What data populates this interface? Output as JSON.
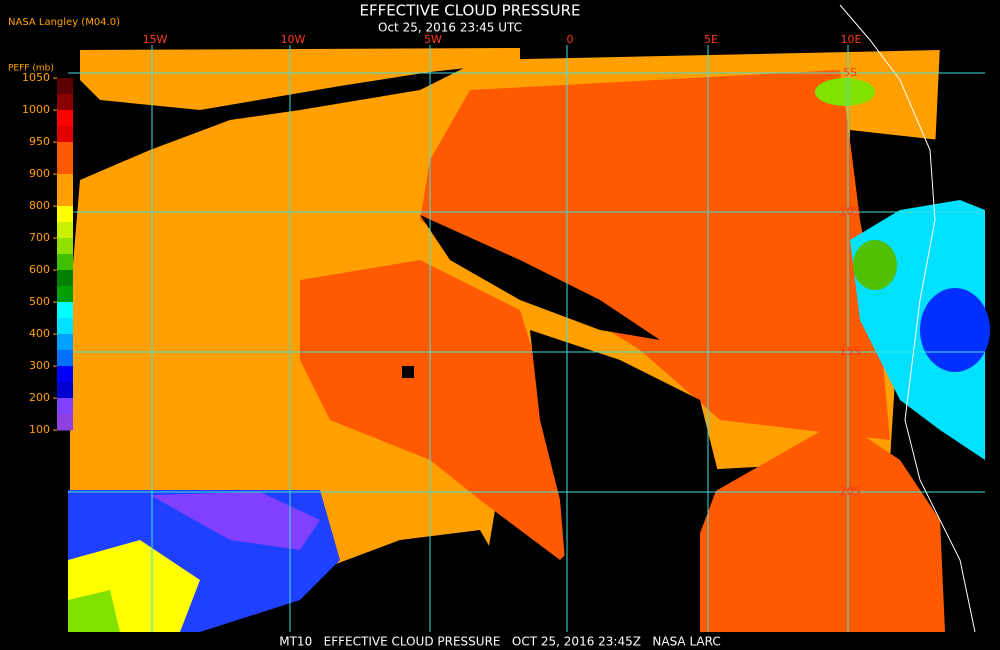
{
  "source": "NASA Langley (M04.0)",
  "title": "EFFECTIVE CLOUD PRESSURE",
  "subtitle": "Oct 25, 2016 23:45 UTC",
  "colorbar": {
    "label": "PEFF (mb)",
    "ticks": [
      1050,
      1000,
      950,
      900,
      800,
      700,
      600,
      500,
      400,
      300,
      200,
      100
    ],
    "colors": [
      "#5a0000",
      "#8a0000",
      "#ff0000",
      "#e00000",
      "#ff5a00",
      "#ff5a00",
      "#ffa000",
      "#ffa000",
      "#ffff00",
      "#c8f000",
      "#90e000",
      "#40c000",
      "#008000",
      "#00a000",
      "#00ffff",
      "#00e0ff",
      "#00a0ff",
      "#0070ff",
      "#0000ff",
      "#0000d0",
      "#8040ff",
      "#9040e0"
    ]
  },
  "longitudes": [
    "15W",
    "10W",
    "5W",
    "0",
    "5E",
    "10E"
  ],
  "latitudes": [
    "5S",
    "10S",
    "15S",
    "20S"
  ],
  "footer": "MT10   EFFECTIVE CLOUD PRESSURE   OCT 25, 2016 23:45Z   NASA LARC"
}
